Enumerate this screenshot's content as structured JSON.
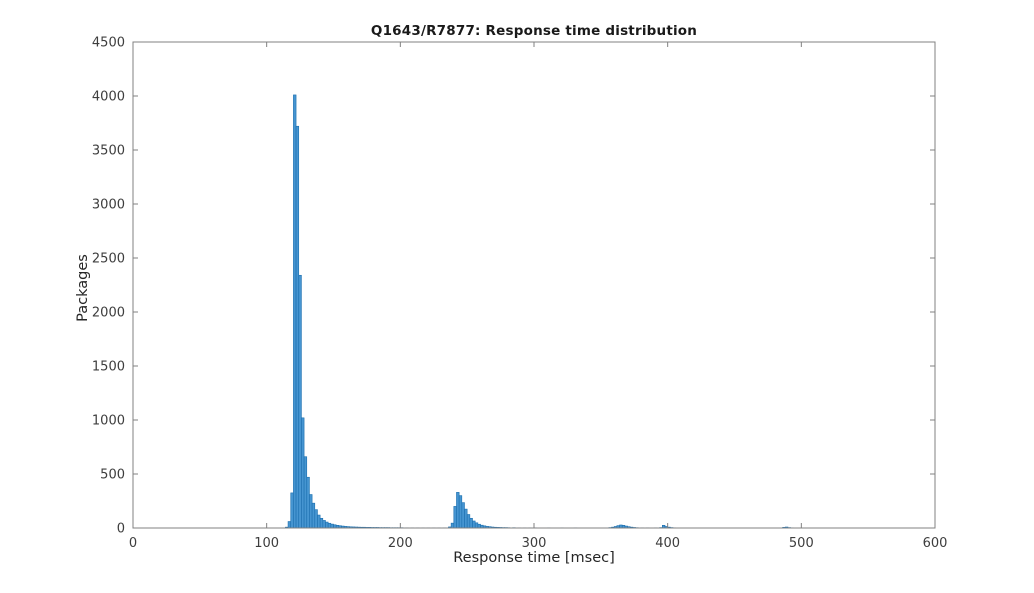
{
  "chart_data": {
    "type": "bar",
    "title": "Q1643/R7877: Response time distribution",
    "xlabel": "Response time [msec]",
    "ylabel": "Packages",
    "xlim": [
      0,
      600
    ],
    "ylim": [
      0,
      4500
    ],
    "xticks": [
      0,
      100,
      200,
      300,
      400,
      500,
      600
    ],
    "yticks": [
      0,
      500,
      1000,
      1500,
      2000,
      2500,
      3000,
      3500,
      4000,
      4500
    ],
    "grid": false,
    "legend": "none",
    "bin_width_msec": 2,
    "bins": [
      [
        114,
        8
      ],
      [
        116,
        60
      ],
      [
        118,
        325
      ],
      [
        120,
        4010
      ],
      [
        122,
        3720
      ],
      [
        124,
        2340
      ],
      [
        126,
        1020
      ],
      [
        128,
        660
      ],
      [
        130,
        470
      ],
      [
        132,
        310
      ],
      [
        134,
        230
      ],
      [
        136,
        170
      ],
      [
        138,
        120
      ],
      [
        140,
        90
      ],
      [
        142,
        70
      ],
      [
        144,
        55
      ],
      [
        146,
        44
      ],
      [
        148,
        36
      ],
      [
        150,
        30
      ],
      [
        152,
        25
      ],
      [
        154,
        21
      ],
      [
        156,
        18
      ],
      [
        158,
        15
      ],
      [
        160,
        13
      ],
      [
        162,
        11
      ],
      [
        164,
        10
      ],
      [
        166,
        9
      ],
      [
        168,
        8
      ],
      [
        170,
        7
      ],
      [
        172,
        7
      ],
      [
        174,
        6
      ],
      [
        176,
        6
      ],
      [
        178,
        5
      ],
      [
        180,
        5
      ],
      [
        182,
        5
      ],
      [
        184,
        4
      ],
      [
        186,
        4
      ],
      [
        188,
        4
      ],
      [
        190,
        4
      ],
      [
        192,
        3
      ],
      [
        194,
        3
      ],
      [
        196,
        3
      ],
      [
        198,
        3
      ],
      [
        200,
        3
      ],
      [
        204,
        2
      ],
      [
        208,
        2
      ],
      [
        212,
        2
      ],
      [
        216,
        2
      ],
      [
        220,
        2
      ],
      [
        224,
        2
      ],
      [
        228,
        2
      ],
      [
        232,
        2
      ],
      [
        236,
        10
      ],
      [
        238,
        45
      ],
      [
        240,
        200
      ],
      [
        242,
        330
      ],
      [
        244,
        300
      ],
      [
        246,
        235
      ],
      [
        248,
        175
      ],
      [
        250,
        125
      ],
      [
        252,
        90
      ],
      [
        254,
        65
      ],
      [
        256,
        48
      ],
      [
        258,
        35
      ],
      [
        260,
        26
      ],
      [
        262,
        20
      ],
      [
        264,
        15
      ],
      [
        266,
        12
      ],
      [
        268,
        9
      ],
      [
        270,
        7
      ],
      [
        272,
        6
      ],
      [
        274,
        5
      ],
      [
        276,
        4
      ],
      [
        278,
        4
      ],
      [
        280,
        3
      ],
      [
        284,
        3
      ],
      [
        288,
        2
      ],
      [
        292,
        2
      ],
      [
        296,
        2
      ],
      [
        300,
        2
      ],
      [
        310,
        2
      ],
      [
        320,
        2
      ],
      [
        330,
        2
      ],
      [
        340,
        1
      ],
      [
        350,
        1
      ],
      [
        356,
        4
      ],
      [
        358,
        8
      ],
      [
        360,
        14
      ],
      [
        362,
        22
      ],
      [
        364,
        28
      ],
      [
        366,
        25
      ],
      [
        368,
        18
      ],
      [
        370,
        12
      ],
      [
        372,
        8
      ],
      [
        374,
        5
      ],
      [
        376,
        3
      ],
      [
        380,
        2
      ],
      [
        384,
        2
      ],
      [
        390,
        2
      ],
      [
        394,
        4
      ],
      [
        396,
        25
      ],
      [
        398,
        14
      ],
      [
        400,
        8
      ],
      [
        402,
        4
      ],
      [
        404,
        2
      ],
      [
        410,
        1
      ],
      [
        420,
        1
      ],
      [
        440,
        1
      ],
      [
        460,
        1
      ],
      [
        486,
        6
      ],
      [
        488,
        9
      ],
      [
        490,
        4
      ],
      [
        492,
        2
      ]
    ],
    "colors": {
      "bar_face": "#4695d1",
      "bar_edge": "#1c6fae",
      "axis": "#808080",
      "tick_label": "#3d3d3d",
      "title_text": "#1a1a1a",
      "background": "#ffffff"
    }
  }
}
